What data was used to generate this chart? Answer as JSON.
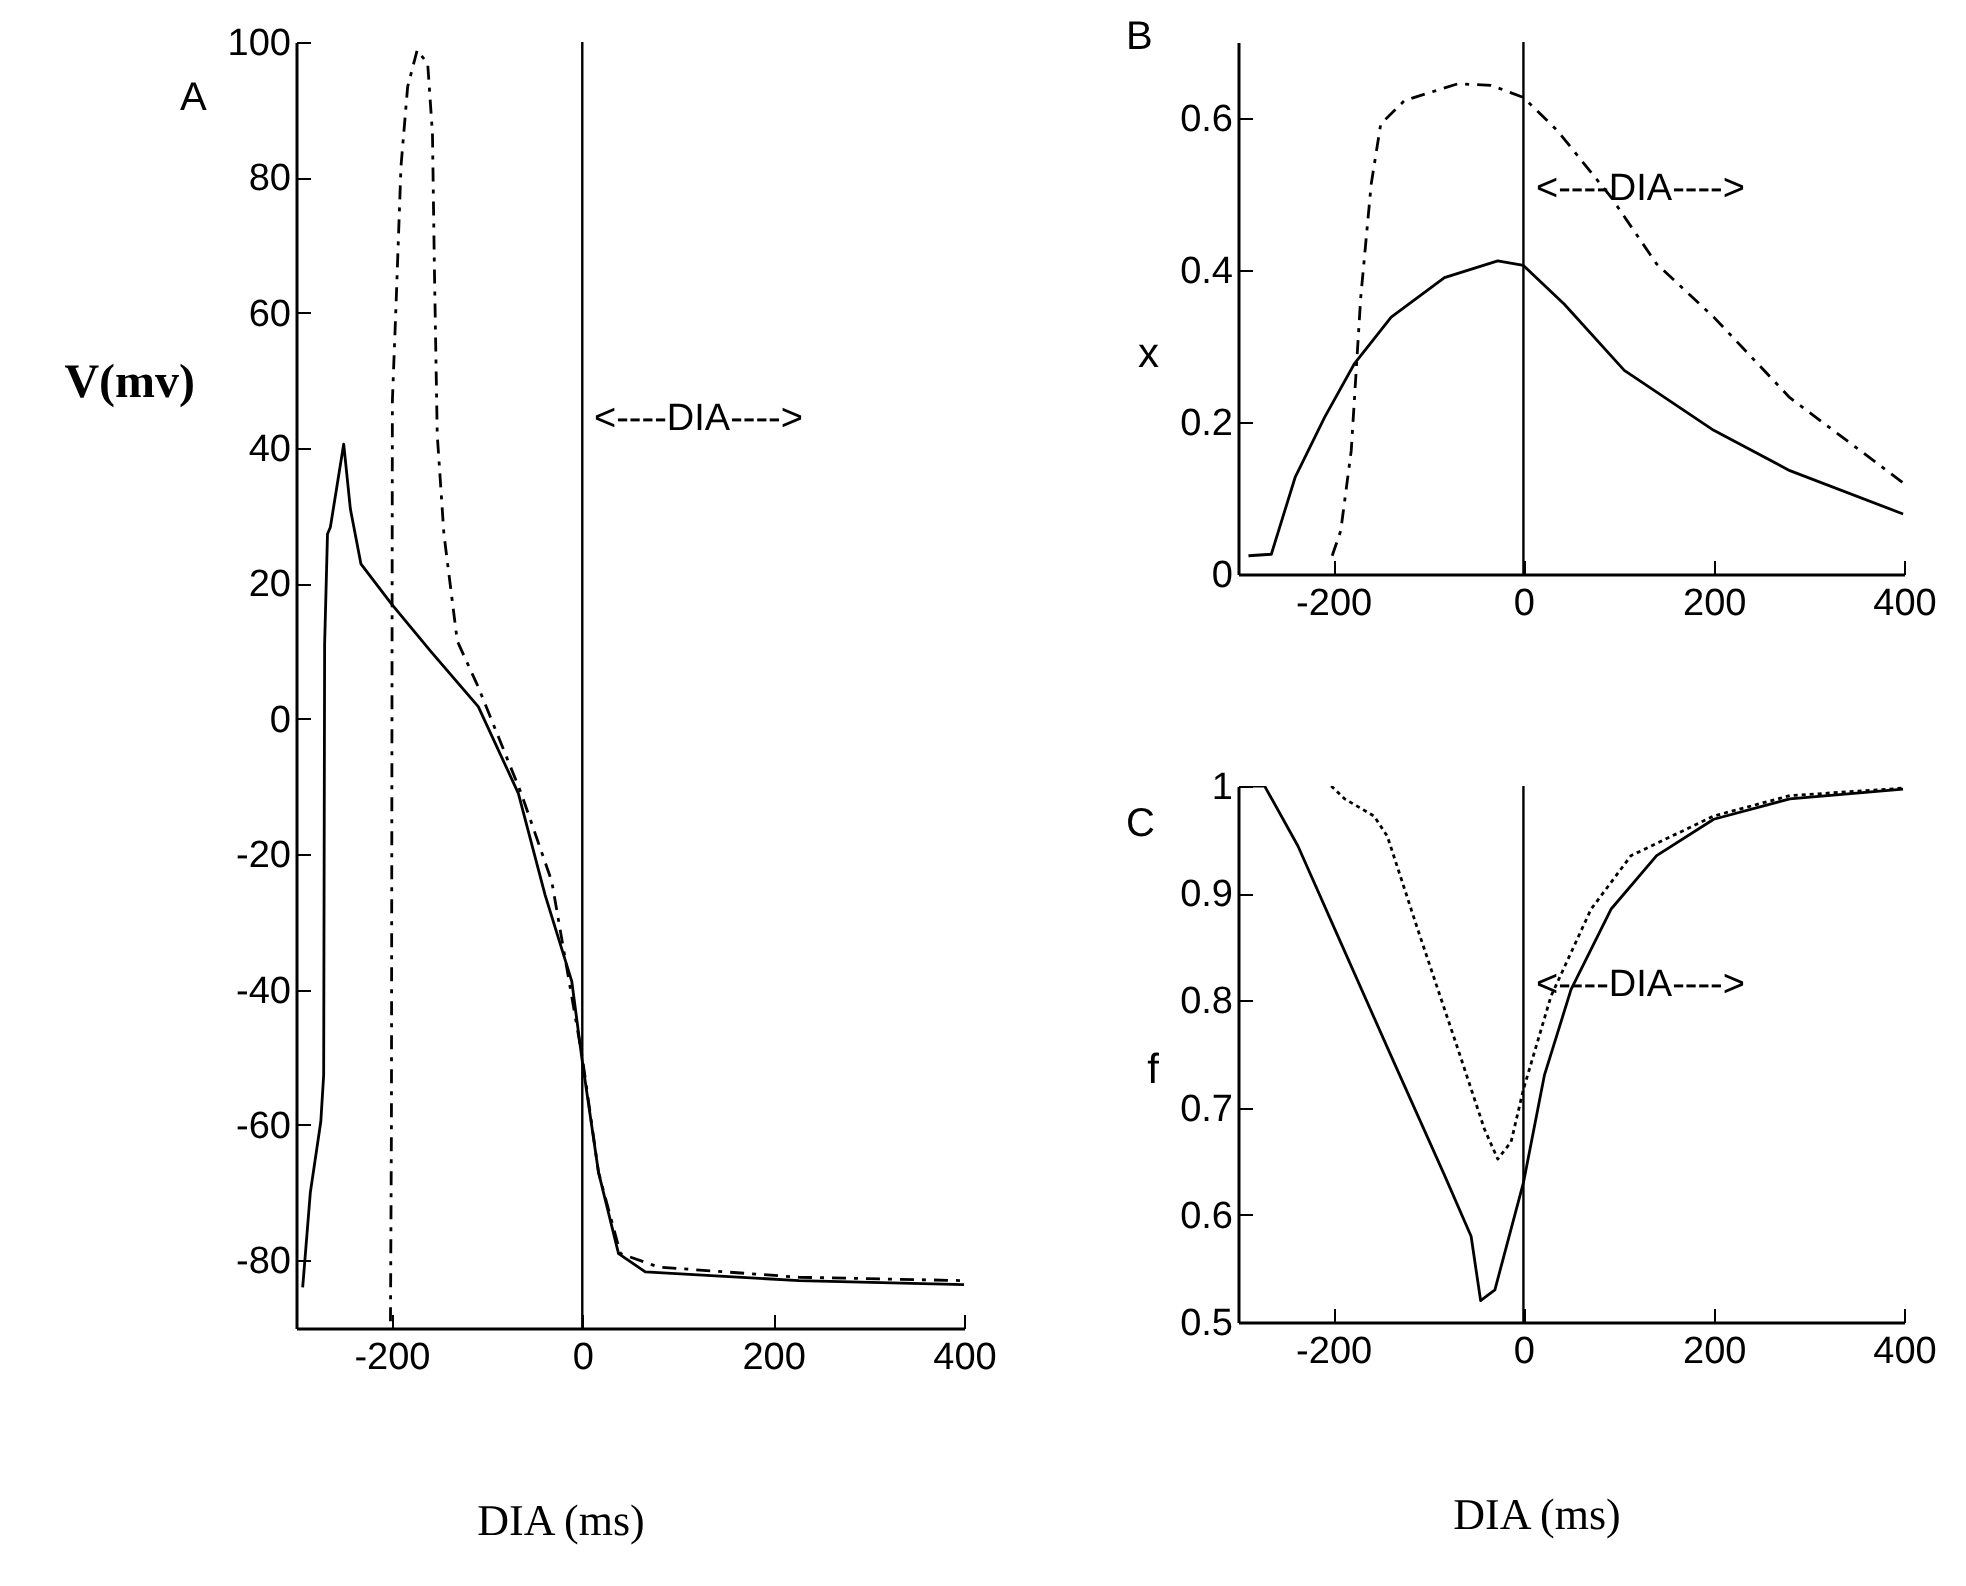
{
  "chart_data": [
    {
      "type": "line",
      "title": "A",
      "xlabel": "DIA (ms)",
      "ylabel": "V(mv)",
      "xlim": [
        -300,
        400
      ],
      "xticks": [
        -200,
        0,
        200,
        400
      ],
      "ylim": [
        -90,
        100
      ],
      "yticks": [
        -80,
        -60,
        -40,
        -20,
        0,
        20,
        40,
        60,
        80,
        100
      ],
      "grid": false,
      "legend": false,
      "marker": "none",
      "series": [
        {
          "color": "#000000",
          "line_style": "solid",
          "x": [
            -293,
            -285,
            -274,
            -271,
            -270,
            -267,
            -264,
            -250,
            -243,
            -232,
            -200,
            -159,
            -109,
            -67,
            -39,
            -11,
            0,
            17,
            38,
            66,
            227,
            400
          ],
          "values": [
            -84,
            -70,
            -59.5,
            -52.6,
            11,
            27.3,
            28.3,
            40.6,
            31,
            22.9,
            17,
            10,
            1.8,
            -11,
            -26,
            -38.8,
            -50.6,
            -67,
            -79,
            -81.7,
            -83,
            -83.6
          ]
        },
        {
          "color": "#000000",
          "line_style": "dashed",
          "x": [
            -201,
            -200,
            -199,
            -195,
            -190,
            -183,
            -173,
            -162,
            -157,
            -155,
            -152,
            -145,
            -131,
            -109,
            -64,
            -32,
            0,
            17,
            40,
            80,
            227,
            400
          ],
          "values": [
            -89,
            -60,
            47,
            61.8,
            81.6,
            93.4,
            98.8,
            96.8,
            86.5,
            66.8,
            42,
            27.3,
            11.5,
            4.7,
            -11,
            -24,
            -50,
            -67,
            -79,
            -81,
            -82.5,
            -83
          ]
        }
      ],
      "ref_lines": [
        {
          "axis": "x",
          "value": 0,
          "color": "#000000"
        }
      ],
      "annotations": [
        "<----DIA---->"
      ]
    },
    {
      "type": "line",
      "title": "B",
      "ylabel": "x",
      "xlim": [
        -300,
        400
      ],
      "xticks": [
        -200,
        0,
        200,
        400
      ],
      "ylim": [
        0,
        0.7
      ],
      "yticks": [
        0,
        0.2,
        0.4,
        0.6
      ],
      "grid": false,
      "legend": false,
      "marker": "none",
      "series": [
        {
          "color": "#000000",
          "line_style": "solid",
          "x": [
            -289,
            -265,
            -240,
            -209,
            -178,
            -139,
            -83,
            -27,
            0,
            43,
            106,
            200,
            280,
            399
          ],
          "values": [
            0.024,
            0.026,
            0.127,
            0.206,
            0.276,
            0.338,
            0.39,
            0.412,
            0.406,
            0.355,
            0.268,
            0.189,
            0.136,
            0.079
          ]
        },
        {
          "color": "#000000",
          "line_style": "dashed",
          "x": [
            -201,
            -192,
            -181,
            -171,
            -160,
            -150,
            -125,
            -69,
            -34,
            0,
            36,
            92,
            140,
            200,
            280,
            399
          ],
          "values": [
            0.024,
            0.057,
            0.162,
            0.364,
            0.513,
            0.592,
            0.623,
            0.645,
            0.643,
            0.627,
            0.583,
            0.496,
            0.408,
            0.338,
            0.232,
            0.12
          ]
        }
      ],
      "ref_lines": [
        {
          "axis": "x",
          "value": 0,
          "color": "#000000"
        }
      ],
      "annotations": [
        "<----DIA---->"
      ]
    },
    {
      "type": "line",
      "title": "C",
      "xlabel": "DIA (ms)",
      "ylabel": "f",
      "xlim": [
        -300,
        400
      ],
      "xticks": [
        -200,
        0,
        200,
        400
      ],
      "ylim": [
        0.5,
        1
      ],
      "yticks": [
        0.5,
        0.6,
        0.7,
        0.8,
        0.9,
        1
      ],
      "grid": false,
      "legend": false,
      "marker": "none",
      "series": [
        {
          "color": "#000000",
          "line_style": "solid",
          "x": [
            -298,
            -272,
            -237,
            -195,
            -139,
            -83,
            -55,
            -45,
            -30,
            0,
            22,
            50,
            92,
            140,
            200,
            280,
            399
          ],
          "values": [
            1,
            1,
            0.944,
            0.86,
            0.748,
            0.637,
            0.58,
            0.52,
            0.53,
            0.63,
            0.73,
            0.81,
            0.885,
            0.935,
            0.969,
            0.988,
            0.997
          ]
        },
        {
          "color": "#000000",
          "line_style": "dotted",
          "x": [
            -202,
            -188,
            -157,
            -143,
            -111,
            -69,
            -41,
            -27,
            -13,
            0,
            29,
            71,
            113,
            200,
            280,
            399
          ],
          "values": [
            1,
            0.988,
            0.972,
            0.953,
            0.866,
            0.755,
            0.68,
            0.652,
            0.668,
            0.717,
            0.804,
            0.885,
            0.935,
            0.972,
            0.991,
            0.998
          ]
        }
      ],
      "ref_lines": [
        {
          "axis": "x",
          "value": 0,
          "color": "#000000"
        }
      ],
      "annotations": [
        "<----DIA---->"
      ]
    }
  ]
}
